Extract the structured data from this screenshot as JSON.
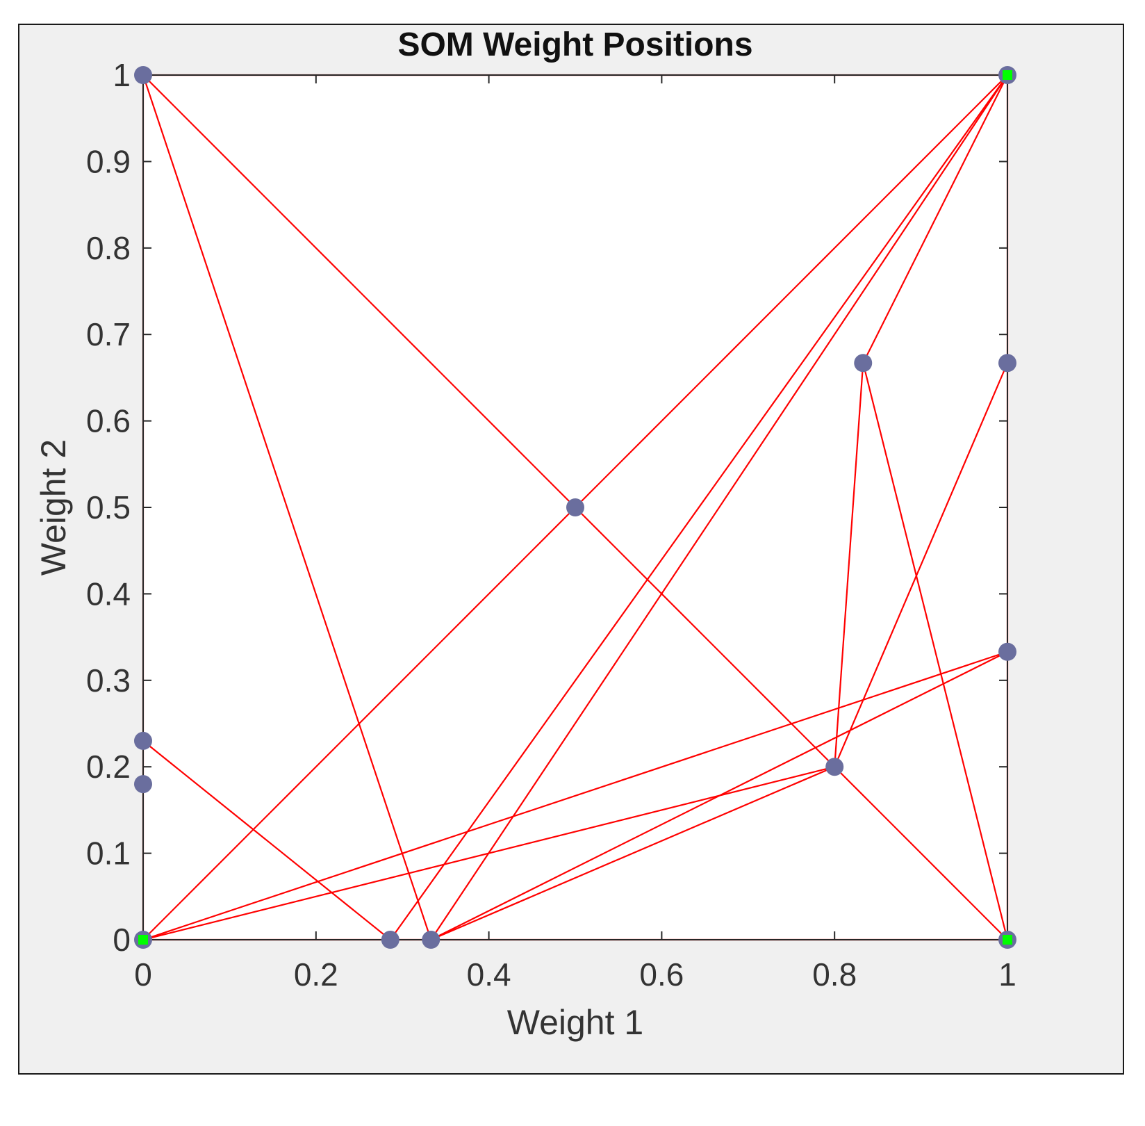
{
  "chart_data": {
    "type": "scatter",
    "title": "SOM Weight Positions",
    "xlabel": "Weight 1",
    "ylabel": "Weight 2",
    "xlim": [
      0,
      1
    ],
    "ylim": [
      0,
      1
    ],
    "xticks": [
      0,
      0.2,
      0.4,
      0.6,
      0.8,
      1
    ],
    "xtick_labels": [
      "0",
      "0.2",
      "0.4",
      "0.6",
      "0.8",
      "1"
    ],
    "yticks": [
      0,
      0.1,
      0.2,
      0.3,
      0.4,
      0.5,
      0.6,
      0.7,
      0.8,
      0.9,
      1
    ],
    "ytick_labels": [
      "0",
      "0.1",
      "0.2",
      "0.3",
      "0.4",
      "0.5",
      "0.6",
      "0.7",
      "0.8",
      "0.9",
      "1"
    ],
    "grid": false,
    "colors": {
      "background": "#f0f0f0",
      "axes_background": "#ffffff",
      "line": "#ff0000",
      "neuron": "#6a6e9e",
      "highlight": "#00ff00"
    },
    "neurons": [
      {
        "x": 0,
        "y": 1,
        "highlight": false
      },
      {
        "x": 1,
        "y": 1,
        "highlight": true
      },
      {
        "x": 0,
        "y": 0,
        "highlight": true
      },
      {
        "x": 1,
        "y": 0,
        "highlight": true
      },
      {
        "x": 0.5,
        "y": 0.5,
        "highlight": false
      },
      {
        "x": 0.833,
        "y": 0.667,
        "highlight": false
      },
      {
        "x": 1,
        "y": 0.667,
        "highlight": false
      },
      {
        "x": 1,
        "y": 0.333,
        "highlight": false
      },
      {
        "x": 0.8,
        "y": 0.2,
        "highlight": false
      },
      {
        "x": 0,
        "y": 0.23,
        "highlight": false
      },
      {
        "x": 0,
        "y": 0.18,
        "highlight": false
      },
      {
        "x": 0.286,
        "y": 0,
        "highlight": false
      },
      {
        "x": 0.333,
        "y": 0,
        "highlight": false
      }
    ],
    "connections": [
      [
        [
          0,
          1
        ],
        [
          0.5,
          0.5
        ]
      ],
      [
        [
          0.5,
          0.5
        ],
        [
          1,
          0
        ]
      ],
      [
        [
          0,
          0
        ],
        [
          0.5,
          0.5
        ]
      ],
      [
        [
          0.5,
          0.5
        ],
        [
          1,
          1
        ]
      ],
      [
        [
          0,
          1
        ],
        [
          0.333,
          0
        ]
      ],
      [
        [
          0.333,
          0
        ],
        [
          1,
          1
        ]
      ],
      [
        [
          0.286,
          0
        ],
        [
          1,
          1
        ]
      ],
      [
        [
          0,
          0.23
        ],
        [
          0.286,
          0
        ]
      ],
      [
        [
          0.333,
          0
        ],
        [
          0.8,
          0.2
        ]
      ],
      [
        [
          0.8,
          0.2
        ],
        [
          0.833,
          0.667
        ]
      ],
      [
        [
          0.833,
          0.667
        ],
        [
          1,
          1
        ]
      ],
      [
        [
          0.833,
          0.667
        ],
        [
          1,
          0
        ]
      ],
      [
        [
          0.8,
          0.2
        ],
        [
          1,
          0.667
        ]
      ],
      [
        [
          0,
          0
        ],
        [
          0.8,
          0.2
        ]
      ],
      [
        [
          0,
          0
        ],
        [
          1,
          0.333
        ]
      ],
      [
        [
          0.333,
          0
        ],
        [
          1,
          0.333
        ]
      ],
      [
        [
          0,
          0
        ],
        [
          1,
          0
        ]
      ],
      [
        [
          0,
          0
        ],
        [
          0,
          1
        ]
      ],
      [
        [
          1,
          0
        ],
        [
          1,
          1
        ]
      ],
      [
        [
          0,
          1
        ],
        [
          1,
          1
        ]
      ]
    ]
  }
}
